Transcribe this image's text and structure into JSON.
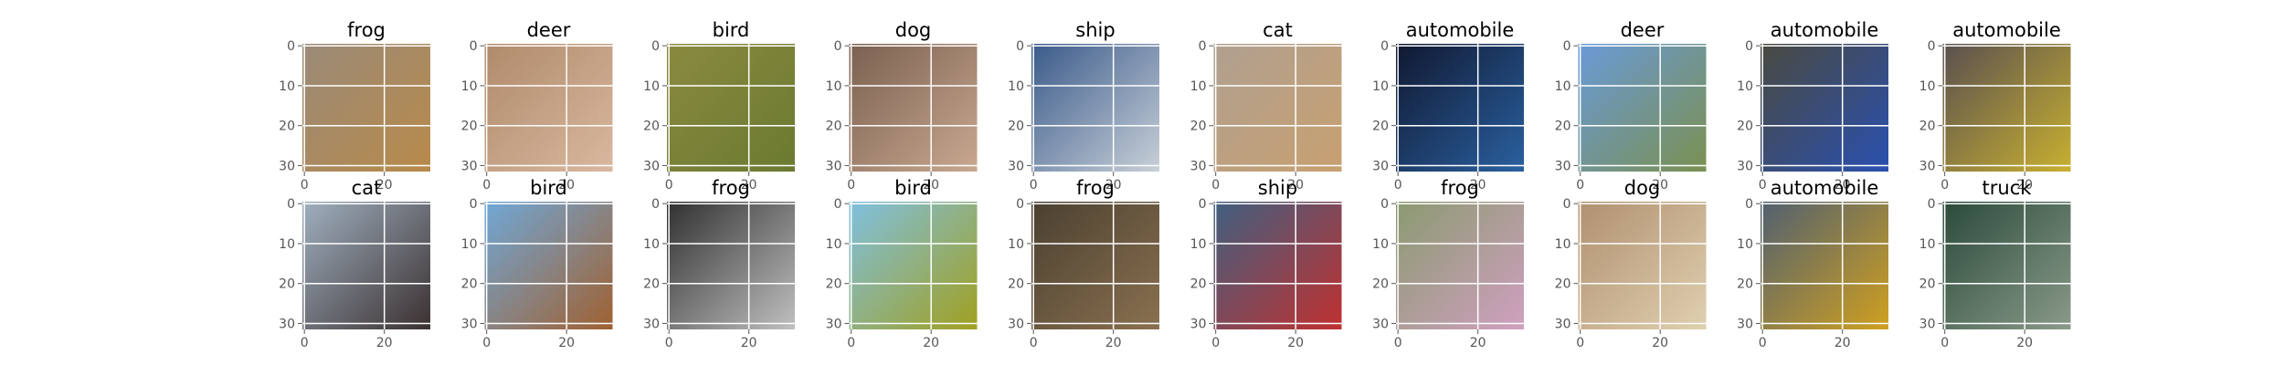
{
  "panels": [
    {
      "title": "frog"
    },
    {
      "title": "deer"
    },
    {
      "title": "bird"
    },
    {
      "title": "dog"
    },
    {
      "title": "ship"
    },
    {
      "title": "cat"
    },
    {
      "title": "automobile"
    },
    {
      "title": "deer"
    },
    {
      "title": "automobile"
    },
    {
      "title": "automobile"
    },
    {
      "title": "cat"
    },
    {
      "title": "bird"
    },
    {
      "title": "frog"
    },
    {
      "title": "bird"
    },
    {
      "title": "frog"
    },
    {
      "title": "ship"
    },
    {
      "title": "frog"
    },
    {
      "title": "dog"
    },
    {
      "title": "automobile"
    },
    {
      "title": "truck"
    }
  ],
  "axes": {
    "xlim": [
      -0.5,
      31.5
    ],
    "ylim": [
      31.5,
      -0.5
    ],
    "xticks": [
      0,
      20
    ],
    "yticks": [
      0,
      10,
      20,
      30
    ]
  }
}
